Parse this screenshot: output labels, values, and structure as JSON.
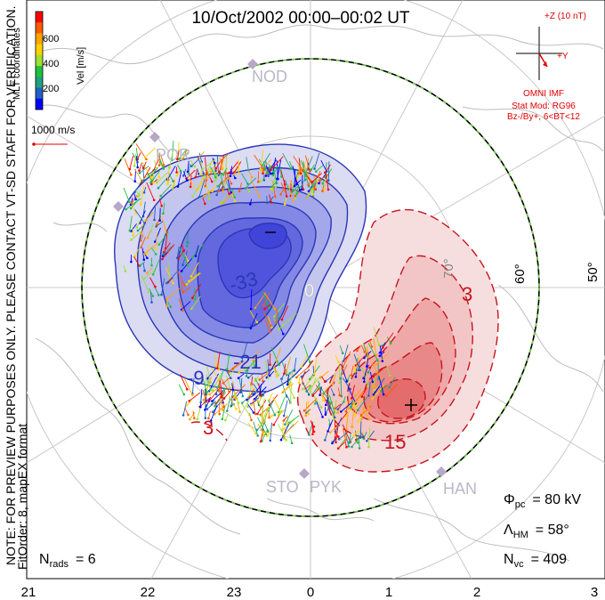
{
  "title": "10/Oct/2002 00:00–00:02 UT",
  "colorbar": {
    "label": "Vel [m/s]",
    "ticks": [
      "600",
      "400",
      "200"
    ],
    "colors": [
      "#ff0000",
      "#ff5a00",
      "#ffa500",
      "#ffd200",
      "#a0e030",
      "#20c040",
      "#20a080",
      "#2060c0",
      "#0000ff"
    ]
  },
  "coordinates_label": "MLT coordinates",
  "scale_vector_label": "1000 m/s",
  "side_note": "NOTE: FOR PREVIEW PURPOSES ONLY. PLEASE CONTACT VT-SD STAFF FOR VERIFICATION.",
  "fit_order": "FitOrder: 8, mapEX format",
  "imf": {
    "z_label": "+Z (10 nT)",
    "y_label": "+Y",
    "source": "OMNI IMF",
    "stat_mod": "Stat Mod: RG96",
    "condition": "Bz-/By+, 6<BT<12"
  },
  "stats": {
    "phi_pc_symbol": "Φ",
    "phi_pc_sub": "pc",
    "phi_pc_value": "= 80 kV",
    "lambda_symbol": "Λ",
    "lambda_sub": "HM",
    "lambda_value": "= 58°",
    "nvc_symbol": "N",
    "nvc_sub": "vc",
    "nvc_value": "= 409",
    "nrads_symbol": "N",
    "nrads_sub": "rads",
    "nrads_value": "= 6"
  },
  "mlt_ticks": [
    "21",
    "22",
    "23",
    "0",
    "1",
    "2",
    "3"
  ],
  "lat_labels": [
    "60°",
    "50°",
    "70°"
  ],
  "stations": [
    "NOD",
    "POR",
    "STO",
    "PYK",
    "HAN"
  ],
  "contours": {
    "negative_labels": [
      "-33",
      "-21",
      "-9",
      "-3"
    ],
    "positive_labels": [
      "3",
      "15",
      "3"
    ],
    "zero_label": "0"
  },
  "colors": {
    "negative_cell": "#3c46c8",
    "positive_cell": "#c8141e",
    "imf_text": "#e00000",
    "heppner_boundary": "#70d040",
    "grid": "#c8c8c8"
  }
}
